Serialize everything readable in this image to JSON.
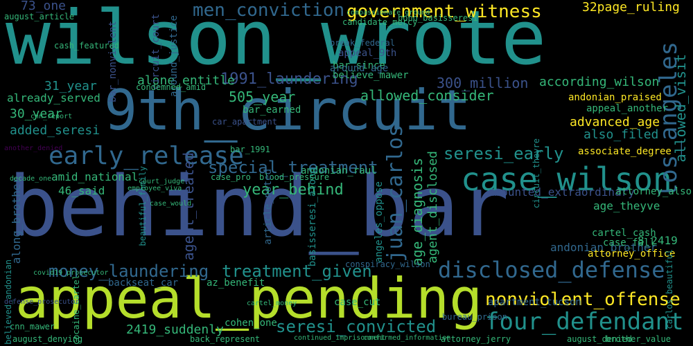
{
  "palette": {
    "bg": "#000000",
    "dark_purple": "#440154",
    "indigo": "#3b528b",
    "blue": "#31688e",
    "teal": "#21918c",
    "green": "#35b779",
    "lime": "#b5de2b",
    "yellow": "#fde725"
  },
  "words": [
    "wilson_wrote",
    "behind_bar",
    "appeal_pending",
    "9th_circuit",
    "case_wilson",
    "early_release",
    "four_defendant",
    "disclosed_defense",
    "nonviolent_offense",
    "government_witness",
    "men_conviction",
    "los_angeles",
    "special_treatment",
    "seresi_early",
    "money_laundering",
    "treatment_given",
    "year_behind",
    "juan_carlos",
    "seresi_convicted",
    "1991_laundering",
    "allowed_consider",
    "according_wilson",
    "allowed_visit",
    "32page_ruling",
    "300_million",
    "505_year",
    "alone_entitle",
    "31_year",
    "already_served",
    "30_year",
    "added_seresi",
    "advanced_age",
    "also_filed",
    "amid_national",
    "46_said",
    "age_diagnosis",
    "agent_disclosed",
    "agent_treated",
    "along_brother",
    "andonian_raul",
    "associate_degree",
    "appeal_another",
    "andonian_praised",
    "age_theyve",
    "8_2419",
    "amounted_extraordinary",
    "attorney_also",
    "andonian_brother",
    "2419_suddenly",
    "cohen_one",
    "case_cut",
    "cartel_cash",
    "case_fall",
    "attorney_office",
    "apartment_tucson",
    "backseat_car",
    "az_benefit",
    "73_one",
    "bar_since",
    "believe_mawer",
    "bar_earned",
    "august_article",
    "bar_nonviolent",
    "circuit_court",
    "around_justice",
    "appeal_9th",
    "around_age",
    "compassionate_ground",
    "candidate_mercy",
    "bono_basisseresi",
    "break_federal",
    "cash_featured",
    "condemned_amid",
    "angeles_oppose",
    "basisseresi_along",
    "case_pro",
    "blood_pressure",
    "article_noted",
    "conspiracy_wilson",
    "august_denying",
    "back_represent",
    "attorney_jerry",
    "august_denied",
    "confirmed_information",
    "continued_imprisonment",
    "bureau_prison",
    "cartel_money",
    "cocaine_cartel",
    "cnn_mawer",
    "believed_andonian",
    "beautiful_family",
    "brother_value",
    "bar_1991",
    "car_apartment",
    "carlos_beautiful",
    "circuit_theyre",
    "court_judge",
    "covid19_prosecutor",
    "defense_prosecutor",
    "decade_one",
    "employee_viva",
    "another_denied",
    "cnn_report",
    "case_would",
    "also_filed"
  ]
}
